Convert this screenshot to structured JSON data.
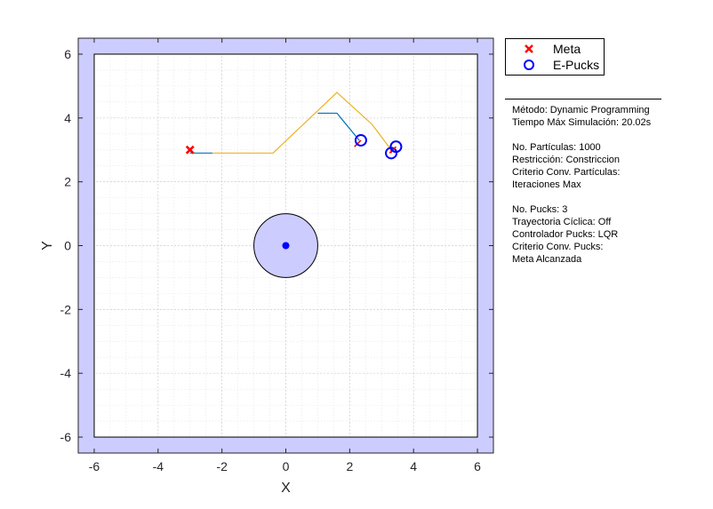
{
  "chart_data": {
    "type": "scatter",
    "xlabel": "X",
    "ylabel": "Y",
    "xlim": [
      -6.5,
      6.5
    ],
    "ylim": [
      -6.5,
      6.5
    ],
    "xticks": [
      -6,
      -4,
      -2,
      0,
      2,
      4,
      6
    ],
    "yticks": [
      -6,
      -4,
      -2,
      0,
      2,
      4,
      6
    ],
    "grid": true,
    "minor_grid": true,
    "arena_limits": [
      -6,
      6
    ],
    "boundary_color": "#ccccff",
    "legend": {
      "placement": "outside-top-right",
      "entries": [
        {
          "label": "Meta",
          "marker": "x",
          "color": "#ff0000"
        },
        {
          "label": "E-Pucks",
          "marker": "circle",
          "color": "#0000ff"
        }
      ]
    },
    "goal": {
      "x": -3.0,
      "y": 3.0,
      "color": "#ff0000"
    },
    "obstacle": {
      "center": [
        0,
        0
      ],
      "radius": 1.0,
      "fill": "#ccccff",
      "center_color": "#0000ff"
    },
    "planned_path": {
      "color": "#edb120",
      "x": [
        -2.3,
        -0.4,
        1.6,
        2.7,
        3.3
      ],
      "y": [
        2.9,
        2.9,
        4.8,
        3.8,
        3.0
      ]
    },
    "trajectories": [
      {
        "color": "#0072bd",
        "x": [
          -3.0,
          -2.3
        ],
        "y": [
          2.9,
          2.9
        ]
      },
      {
        "color": "#0072bd",
        "x": [
          1.0,
          1.6,
          2.3
        ],
        "y": [
          4.15,
          4.15,
          3.3
        ]
      }
    ],
    "pucks": [
      {
        "x": 2.35,
        "y": 3.3,
        "heading": [
          -0.2,
          -0.2
        ]
      },
      {
        "x": 3.3,
        "y": 2.9,
        "heading": [
          0.0,
          0.15
        ]
      },
      {
        "x": 3.45,
        "y": 3.1,
        "heading": [
          -0.2,
          -0.2
        ]
      }
    ],
    "puck_color": "#0000ff",
    "heading_color": "#ff0000"
  },
  "legend_labels": {
    "goal": "Meta",
    "pucks": "E-Pucks"
  },
  "info": {
    "metodo": "Método: Dynamic Programming",
    "tiempo": "Tiempo Máx Simulación: 20.02s",
    "particulas": "No. Partículas: 1000",
    "restriccion": "Restricción: Constriccion",
    "criterio_particulas_1": "Criterio Conv. Partículas:",
    "criterio_particulas_2": "Iteraciones Max",
    "pucks": "No. Pucks: 3",
    "trayectoria": "Trayectoria Cíclica: Off",
    "controlador": "Controlador Pucks: LQR",
    "criterio_pucks_1": "Criterio Conv. Pucks:",
    "criterio_pucks_2": "Meta Alcanzada"
  }
}
